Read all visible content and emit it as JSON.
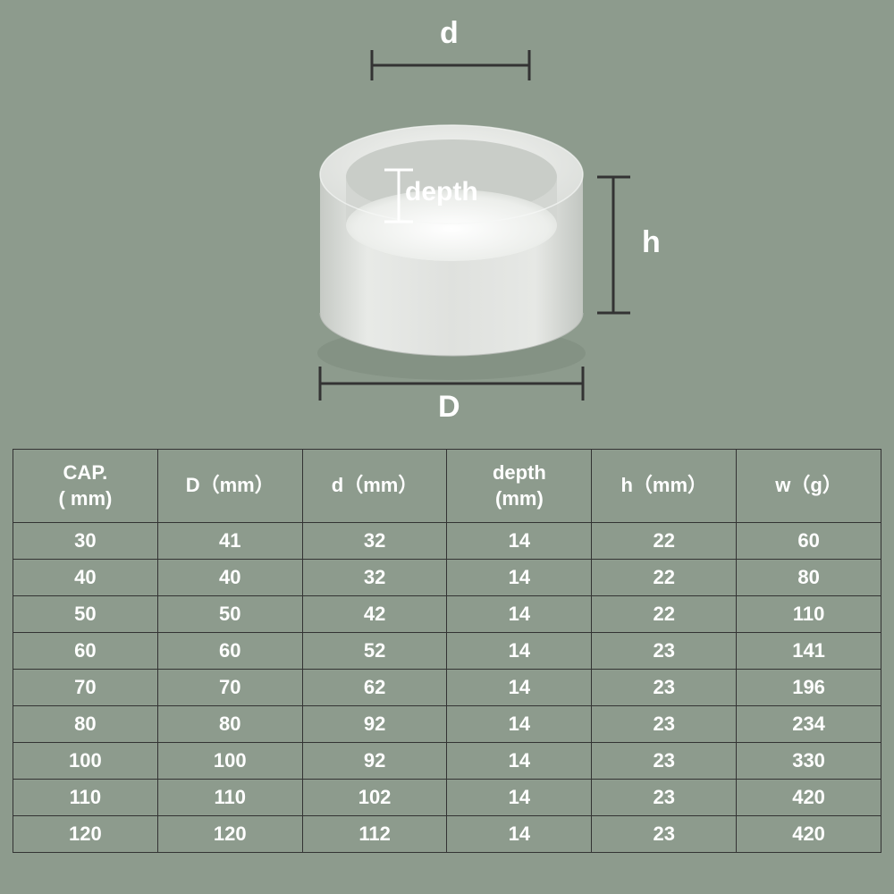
{
  "background_color": "#8d9b8d",
  "line_color": "#333333",
  "text_color": "#ffffff",
  "diagram": {
    "labels": {
      "d": "d",
      "D": "D",
      "h": "h",
      "depth": "depth"
    },
    "label_fontsize": 32,
    "depth_fontsize": 28,
    "cylinder": {
      "outer_color_top": "#e5e7e4",
      "outer_color_bottom": "#d0d3cf",
      "inner_color": "#f2f4f1",
      "shadow_color": "#b8bcb7"
    }
  },
  "table": {
    "type": "table",
    "border_color": "#333333",
    "header_fontsize": 22,
    "cell_fontsize": 22,
    "columns": [
      {
        "line1": "CAP.",
        "line2": "( mm)"
      },
      {
        "line1": "D（mm）",
        "line2": ""
      },
      {
        "line1": "d（mm）",
        "line2": ""
      },
      {
        "line1": "depth",
        "line2": "(mm)"
      },
      {
        "line1": "h（mm）",
        "line2": ""
      },
      {
        "line1": "w（g）",
        "line2": ""
      }
    ],
    "rows": [
      [
        "30",
        "41",
        "32",
        "14",
        "22",
        "60"
      ],
      [
        "40",
        "40",
        "32",
        "14",
        "22",
        "80"
      ],
      [
        "50",
        "50",
        "42",
        "14",
        "22",
        "110"
      ],
      [
        "60",
        "60",
        "52",
        "14",
        "23",
        "141"
      ],
      [
        "70",
        "70",
        "62",
        "14",
        "23",
        "196"
      ],
      [
        "80",
        "80",
        "92",
        "14",
        "23",
        "234"
      ],
      [
        "100",
        "100",
        "92",
        "14",
        "23",
        "330"
      ],
      [
        "110",
        "110",
        "102",
        "14",
        "23",
        "420"
      ],
      [
        "120",
        "120",
        "112",
        "14",
        "23",
        "420"
      ]
    ]
  }
}
